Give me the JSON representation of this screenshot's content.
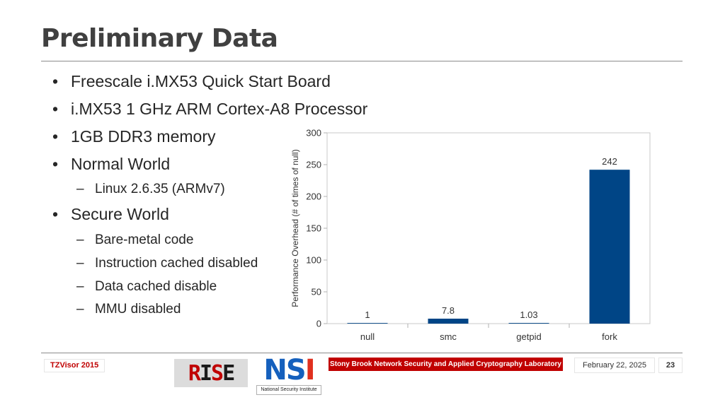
{
  "slide": {
    "title": "Preliminary Data"
  },
  "bullets": {
    "bullet_char": "•",
    "dash_char": "–",
    "items": [
      {
        "level": 1,
        "text": "Freescale i.MX53 Quick Start Board"
      },
      {
        "level": 1,
        "text": "i.MX53 1 GHz ARM Cortex-A8 Processor"
      },
      {
        "level": 1,
        "text": "1GB DDR3 memory"
      },
      {
        "level": 1,
        "text": "Normal World"
      },
      {
        "level": 2,
        "text": "Linux 2.6.35 (ARMv7)"
      },
      {
        "level": 1,
        "text": "Secure World"
      },
      {
        "level": 2,
        "text": "Bare-metal code"
      },
      {
        "level": 2,
        "text": "Instruction cached disabled"
      },
      {
        "level": 2,
        "text": "Data cached disable"
      },
      {
        "level": 2,
        "text": "MMU disabled"
      }
    ]
  },
  "chart_data": {
    "type": "bar",
    "title": "",
    "xlabel": "",
    "ylabel": "Performance Overhead (# of times of null)",
    "categories": [
      "null",
      "smc",
      "getpid",
      "fork"
    ],
    "values": [
      1,
      7.8,
      1.03,
      242
    ],
    "value_labels": [
      "1",
      "7.8",
      "1.03",
      "242"
    ],
    "ylim": [
      0,
      300
    ],
    "yticks": [
      0,
      50,
      100,
      150,
      200,
      250,
      300
    ],
    "grid": "none",
    "legend": "none",
    "bar_color": "#004586"
  },
  "footer": {
    "conference": "TZVisor 2015",
    "logo_text": "RISE",
    "nsi_mark": "NSI",
    "nsi_caption": "National Security Institute",
    "lab_name": "Stony Brook Network Security and Applied Cryptography Laboratory",
    "date": "February 22, 2025",
    "page_number": "23"
  },
  "colors": {
    "title": "#404040",
    "accent_red": "#c00000",
    "nsi_blue": "#1560bd",
    "bar": "#004586"
  }
}
